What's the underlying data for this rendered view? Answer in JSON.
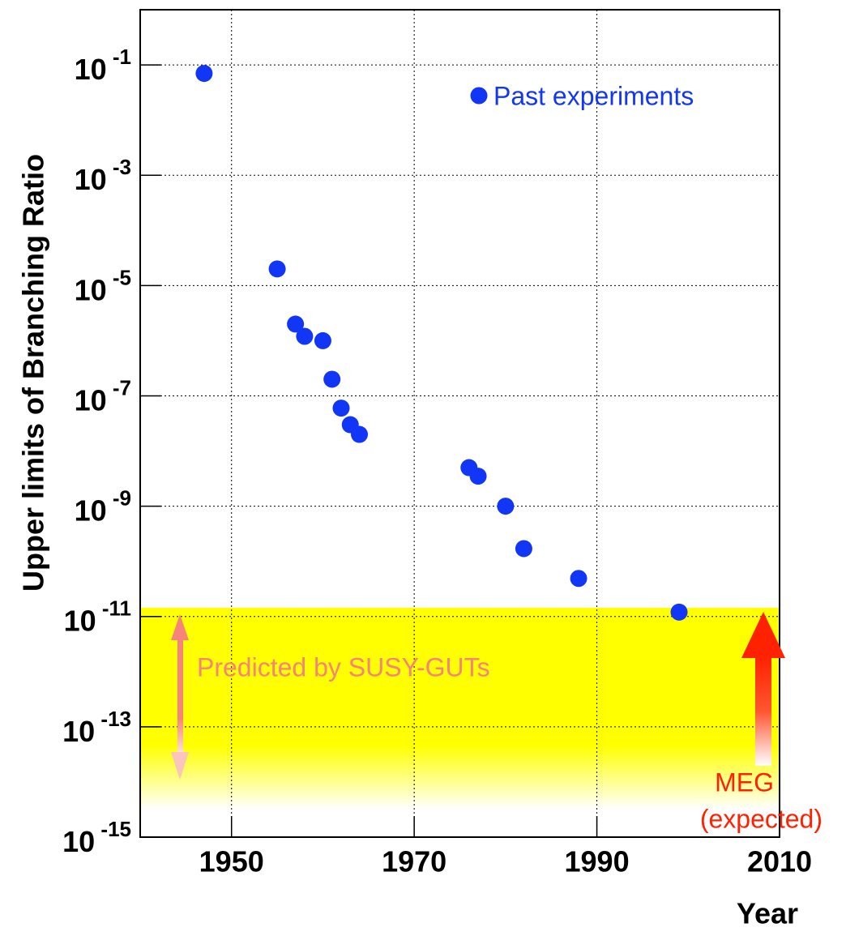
{
  "chart_data": {
    "type": "scatter",
    "xlabel": "Year",
    "ylabel": "Upper limits of Branching Ratio",
    "log_y": true,
    "grid": true,
    "xlim": [
      1940,
      2010
    ],
    "xticks": [
      1950,
      1970,
      1990,
      2010
    ],
    "ylim": [
      1e-15,
      1
    ],
    "yticks": [
      {
        "value": 0.1,
        "label": "10-1"
      },
      {
        "value": 0.001,
        "label": "10-3"
      },
      {
        "value": 1e-05,
        "label": "10-5"
      },
      {
        "value": 1e-07,
        "label": "10-7"
      },
      {
        "value": 1e-09,
        "label": "10-9"
      },
      {
        "value": 1e-11,
        "label": "10-11"
      },
      {
        "value": 1e-13,
        "label": "10-13"
      },
      {
        "value": 1e-15,
        "label": "10-15"
      }
    ],
    "series": [
      {
        "name": "Past experiments",
        "color": "#1236f5",
        "x": [
          1947,
          1955,
          1957,
          1958,
          1960,
          1961,
          1962,
          1963,
          1964,
          1976,
          1977,
          1980,
          1982,
          1988,
          1999
        ],
        "values": [
          0.07,
          2e-05,
          2e-06,
          1.2e-06,
          1e-06,
          2e-07,
          6e-08,
          3e-08,
          2e-08,
          5e-09,
          3.5e-09,
          1e-09,
          1.7e-10,
          4.9e-11,
          1.2e-11
        ]
      }
    ],
    "annotations": [
      "Predicted by SUSY-GUTs",
      "MEG",
      "(expected)"
    ]
  }
}
